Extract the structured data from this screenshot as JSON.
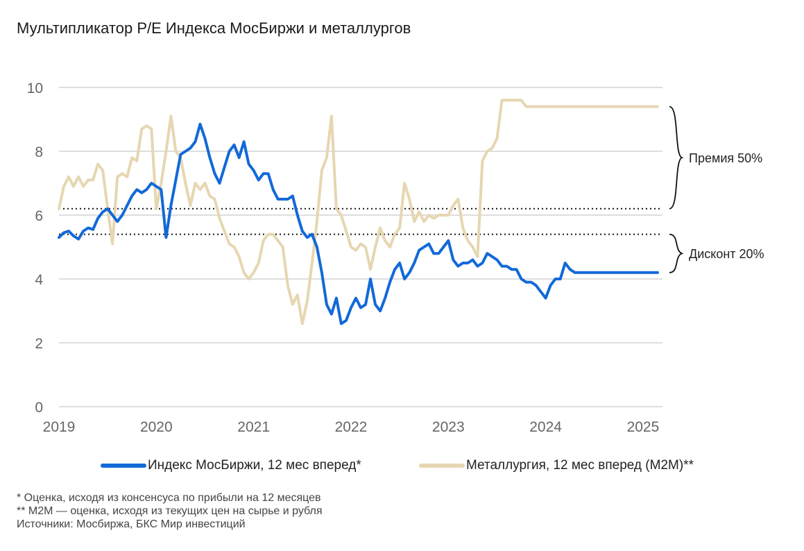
{
  "chart_data": {
    "type": "line",
    "title": "Мультипликатор P/E Индекса МосБиржи и металлургов",
    "xlabel": "",
    "ylabel": "",
    "xlim": [
      2019.0,
      2025.2
    ],
    "ylim": [
      0,
      10
    ],
    "yticks": [
      0,
      2,
      4,
      6,
      8,
      10
    ],
    "xticks": [
      2019,
      2020,
      2021,
      2022,
      2023,
      2024,
      2025
    ],
    "grid": true,
    "legend_position": "bottom",
    "reference_lines": [
      6.2,
      5.4
    ],
    "annotations": [
      {
        "text": "Премия 50%",
        "from": 6.2,
        "to": 9.4
      },
      {
        "text": "Дисконт 20%",
        "from": 4.2,
        "to": 5.4
      }
    ],
    "series": [
      {
        "name": "Индекс МосБиржи, 12 мес вперед*",
        "color": "#1269d8",
        "x": [
          2019.0,
          2019.05,
          2019.1,
          2019.15,
          2019.2,
          2019.25,
          2019.3,
          2019.35,
          2019.4,
          2019.45,
          2019.5,
          2019.55,
          2019.6,
          2019.65,
          2019.7,
          2019.75,
          2019.8,
          2019.85,
          2019.9,
          2019.95,
          2020.0,
          2020.05,
          2020.1,
          2020.15,
          2020.2,
          2020.25,
          2020.3,
          2020.35,
          2020.4,
          2020.45,
          2020.5,
          2020.55,
          2020.6,
          2020.65,
          2020.7,
          2020.75,
          2020.8,
          2020.85,
          2020.9,
          2020.95,
          2021.0,
          2021.05,
          2021.1,
          2021.15,
          2021.2,
          2021.25,
          2021.3,
          2021.35,
          2021.4,
          2021.45,
          2021.5,
          2021.55,
          2021.6,
          2021.65,
          2021.7,
          2021.75,
          2021.8,
          2021.85,
          2021.9,
          2021.95,
          2022.0,
          2022.05,
          2022.1,
          2022.15,
          2022.2,
          2022.25,
          2022.3,
          2022.35,
          2022.4,
          2022.45,
          2022.5,
          2022.55,
          2022.6,
          2022.65,
          2022.7,
          2022.75,
          2022.8,
          2022.85,
          2022.9,
          2022.95,
          2023.0,
          2023.05,
          2023.1,
          2023.15,
          2023.2,
          2023.25,
          2023.3,
          2023.35,
          2023.4,
          2023.45,
          2023.5,
          2023.55,
          2023.6,
          2023.65,
          2023.7,
          2023.75,
          2023.8,
          2023.85,
          2023.9,
          2023.95,
          2024.0,
          2024.05,
          2024.1,
          2024.15,
          2024.2,
          2024.25,
          2024.3,
          2024.35,
          2024.4,
          2024.45,
          2024.5,
          2024.55,
          2024.6,
          2024.65,
          2024.7,
          2024.75,
          2024.8,
          2024.85,
          2024.9,
          2024.95,
          2025.0,
          2025.05,
          2025.1,
          2025.15
        ],
        "values": [
          5.3,
          5.45,
          5.5,
          5.35,
          5.25,
          5.5,
          5.6,
          5.55,
          5.9,
          6.1,
          6.2,
          6.0,
          5.8,
          6.0,
          6.3,
          6.6,
          6.8,
          6.7,
          6.8,
          7.0,
          6.9,
          6.8,
          5.3,
          6.3,
          7.1,
          7.9,
          8.0,
          8.1,
          8.3,
          8.85,
          8.4,
          7.8,
          7.3,
          7.0,
          7.5,
          8.0,
          8.2,
          7.8,
          8.3,
          7.6,
          7.4,
          7.1,
          7.3,
          7.3,
          6.8,
          6.5,
          6.5,
          6.5,
          6.6,
          6.0,
          5.5,
          5.3,
          5.4,
          5.0,
          4.2,
          3.2,
          2.9,
          3.4,
          2.6,
          2.7,
          3.1,
          3.4,
          3.1,
          3.2,
          4.0,
          3.2,
          3.0,
          3.4,
          3.9,
          4.3,
          4.5,
          4.0,
          4.2,
          4.5,
          4.9,
          5.0,
          5.1,
          4.8,
          4.8,
          5.0,
          5.2,
          4.6,
          4.4,
          4.5,
          4.5,
          4.6,
          4.4,
          4.5,
          4.8,
          4.7,
          4.6,
          4.4,
          4.4,
          4.3,
          4.3,
          4.0,
          3.9,
          3.9,
          3.8,
          3.6,
          3.4,
          3.8,
          4.0,
          4.0,
          4.5,
          4.3,
          4.2,
          4.2,
          4.2,
          4.2,
          4.2,
          4.2,
          4.2,
          4.2,
          4.2,
          4.2,
          4.2,
          4.2,
          4.2,
          4.2,
          4.2,
          4.2,
          4.2,
          4.2
        ]
      },
      {
        "name": "Металлургия, 12 мес вперед (М2М)**",
        "color": "#e6d7b2",
        "x": [
          2019.0,
          2019.05,
          2019.1,
          2019.15,
          2019.2,
          2019.25,
          2019.3,
          2019.35,
          2019.4,
          2019.45,
          2019.5,
          2019.55,
          2019.6,
          2019.65,
          2019.7,
          2019.75,
          2019.8,
          2019.85,
          2019.9,
          2019.95,
          2020.0,
          2020.05,
          2020.1,
          2020.15,
          2020.2,
          2020.25,
          2020.3,
          2020.35,
          2020.4,
          2020.45,
          2020.5,
          2020.55,
          2020.6,
          2020.65,
          2020.7,
          2020.75,
          2020.8,
          2020.85,
          2020.9,
          2020.95,
          2021.0,
          2021.05,
          2021.1,
          2021.15,
          2021.2,
          2021.25,
          2021.3,
          2021.35,
          2021.4,
          2021.45,
          2021.5,
          2021.55,
          2021.6,
          2021.65,
          2021.7,
          2021.75,
          2021.8,
          2021.85,
          2021.9,
          2021.95,
          2022.0,
          2022.05,
          2022.1,
          2022.15,
          2022.2,
          2022.25,
          2022.3,
          2022.35,
          2022.4,
          2022.45,
          2022.5,
          2022.55,
          2022.6,
          2022.65,
          2022.7,
          2022.75,
          2022.8,
          2022.85,
          2022.9,
          2022.95,
          2023.0,
          2023.05,
          2023.1,
          2023.15,
          2023.2,
          2023.25,
          2023.3,
          2023.35,
          2023.4,
          2023.45,
          2023.5,
          2023.55,
          2023.6,
          2023.65,
          2023.7,
          2023.75,
          2023.8,
          2023.85,
          2023.9,
          2023.95,
          2024.0,
          2024.05,
          2024.1,
          2024.15,
          2024.2,
          2024.25,
          2024.3,
          2024.35,
          2024.4,
          2024.45,
          2024.5,
          2024.55,
          2024.6,
          2024.65,
          2024.7,
          2024.75,
          2024.8,
          2024.85,
          2024.9,
          2024.95,
          2025.0,
          2025.05,
          2025.1,
          2025.15
        ],
        "values": [
          6.2,
          6.9,
          7.2,
          6.9,
          7.2,
          6.9,
          7.1,
          7.1,
          7.6,
          7.4,
          6.2,
          5.1,
          7.2,
          7.3,
          7.2,
          7.8,
          7.7,
          8.7,
          8.8,
          8.7,
          6.2,
          7.0,
          8.0,
          9.1,
          8.0,
          7.8,
          7.0,
          6.3,
          7.0,
          6.8,
          7.0,
          6.6,
          6.5,
          5.9,
          5.5,
          5.1,
          5.0,
          4.7,
          4.2,
          4.0,
          4.2,
          4.5,
          5.2,
          5.4,
          5.4,
          5.2,
          5.0,
          3.8,
          3.2,
          3.5,
          2.6,
          3.3,
          4.5,
          5.8,
          7.4,
          7.8,
          9.1,
          6.2,
          6.0,
          5.5,
          5.0,
          4.9,
          5.1,
          5.0,
          4.3,
          5.0,
          5.6,
          5.2,
          5.0,
          5.4,
          5.6,
          7.0,
          6.5,
          5.8,
          6.1,
          5.8,
          6.0,
          5.9,
          6.0,
          6.0,
          6.0,
          6.3,
          6.5,
          5.6,
          5.2,
          5.0,
          4.7,
          7.7,
          8.0,
          8.1,
          8.4,
          9.6,
          9.6,
          9.6,
          9.6,
          9.6,
          9.4,
          9.4,
          9.4,
          9.4,
          9.4,
          9.4,
          9.4,
          9.4,
          9.4,
          9.4,
          9.4,
          9.4,
          9.4,
          9.4,
          9.4,
          9.4,
          9.4,
          9.4,
          9.4,
          9.4,
          9.4,
          9.4,
          9.4,
          9.4,
          9.4,
          9.4,
          9.4,
          9.4
        ]
      }
    ]
  },
  "notes": [
    "* Оценка, исходя из консенсуса по прибыли на 12 месяцев",
    "** М2М — оценка, исходя из текущих цен на сырье и рубля",
    "Источники: Мосбиржа, БКС Мир инвестиций"
  ]
}
